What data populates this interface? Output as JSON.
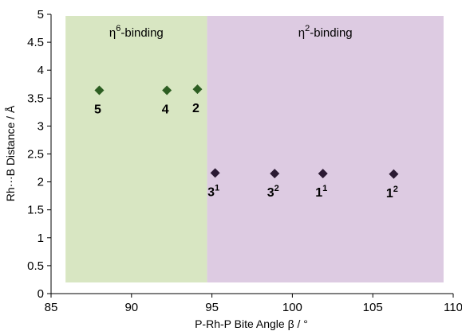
{
  "chart_data": {
    "type": "scatter",
    "xlabel": "P-Rh-P Bite Angle β / °",
    "ylabel": "Rh···B Distance / Å",
    "xlim": [
      85,
      110
    ],
    "ylim": [
      0,
      5
    ],
    "xticks": [
      "85",
      "90",
      "95",
      "100",
      "105",
      "110"
    ],
    "yticks": [
      "0",
      "0.5",
      "1",
      "1.5",
      "2",
      "2.5",
      "3",
      "3.5",
      "4",
      "4.5",
      "5"
    ],
    "grid": false,
    "regions": [
      {
        "label": "η",
        "label_sup": "6",
        "label_rest": "-binding",
        "x_start": 85.9,
        "x_end": 94.7,
        "color": "#d8e6c2"
      },
      {
        "label": "η",
        "label_sup": "2",
        "label_rest": "-binding",
        "x_start": 94.7,
        "x_end": 109.4,
        "color": "#ddcbe2"
      }
    ],
    "series": [
      {
        "points": [
          {
            "label": "5",
            "sup": "",
            "x": 88.0,
            "y": 3.64,
            "color": "#2d5e22"
          },
          {
            "label": "4",
            "sup": "",
            "x": 92.2,
            "y": 3.64,
            "color": "#2d5e22"
          },
          {
            "label": "2",
            "sup": "",
            "x": 94.1,
            "y": 3.66,
            "color": "#2d5e22"
          },
          {
            "label": "3",
            "sup": "1",
            "x": 95.2,
            "y": 2.16,
            "color": "#2b1a33"
          },
          {
            "label": "3",
            "sup": "2",
            "x": 98.9,
            "y": 2.15,
            "color": "#2b1a33"
          },
          {
            "label": "1",
            "sup": "1",
            "x": 101.9,
            "y": 2.15,
            "color": "#2b1a33"
          },
          {
            "label": "1",
            "sup": "2",
            "x": 106.3,
            "y": 2.14,
            "color": "#2b1a33"
          }
        ]
      }
    ]
  }
}
